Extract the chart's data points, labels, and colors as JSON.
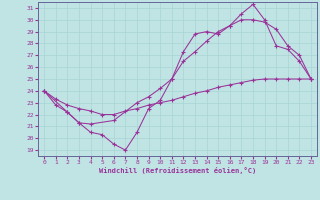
{
  "xlabel": "Windchill (Refroidissement éolien,°C)",
  "bg_color": "#c0e4e4",
  "grid_color": "#a8d4d4",
  "line_color": "#993399",
  "spine_color": "#666699",
  "xlim": [
    -0.5,
    23.5
  ],
  "ylim": [
    18.5,
    31.5
  ],
  "xticks": [
    0,
    1,
    2,
    3,
    4,
    5,
    6,
    7,
    8,
    9,
    10,
    11,
    12,
    13,
    14,
    15,
    16,
    17,
    18,
    19,
    20,
    21,
    22,
    23
  ],
  "yticks": [
    19,
    20,
    21,
    22,
    23,
    24,
    25,
    26,
    27,
    28,
    29,
    30,
    31
  ],
  "line1_x": [
    0,
    1,
    2,
    3,
    4,
    5,
    6,
    7,
    8,
    9,
    10,
    11,
    12,
    13,
    14,
    15,
    16,
    17,
    18,
    19,
    20,
    21,
    22,
    23
  ],
  "line1_y": [
    24.0,
    22.8,
    22.2,
    21.3,
    20.5,
    20.3,
    19.5,
    19.0,
    20.5,
    22.5,
    23.2,
    25.0,
    27.3,
    28.8,
    29.0,
    28.8,
    29.5,
    30.5,
    31.3,
    30.0,
    27.8,
    27.5,
    26.5,
    25.0
  ],
  "line2_x": [
    0,
    2,
    3,
    4,
    6,
    8,
    9,
    10,
    11,
    12,
    13,
    14,
    15,
    16,
    17,
    18,
    19,
    20,
    21,
    22,
    23
  ],
  "line2_y": [
    24.0,
    22.2,
    21.3,
    21.2,
    21.5,
    23.0,
    23.5,
    24.2,
    25.0,
    26.5,
    27.3,
    28.2,
    29.0,
    29.5,
    30.0,
    30.0,
    29.8,
    29.2,
    27.8,
    27.0,
    25.0
  ],
  "line3_x": [
    0,
    1,
    2,
    3,
    4,
    5,
    6,
    7,
    8,
    9,
    10,
    11,
    12,
    13,
    14,
    15,
    16,
    17,
    18,
    19,
    20,
    21,
    22,
    23
  ],
  "line3_y": [
    24.0,
    23.3,
    22.8,
    22.5,
    22.3,
    22.0,
    22.0,
    22.3,
    22.5,
    22.8,
    23.0,
    23.2,
    23.5,
    23.8,
    24.0,
    24.3,
    24.5,
    24.7,
    24.9,
    25.0,
    25.0,
    25.0,
    25.0,
    25.0
  ]
}
